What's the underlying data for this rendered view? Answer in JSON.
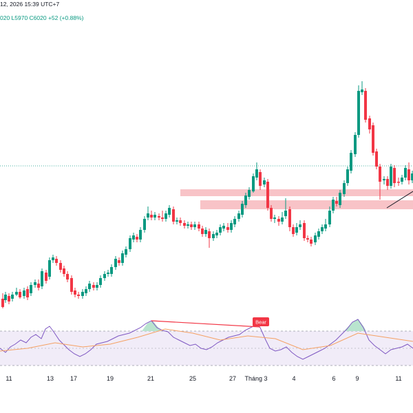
{
  "header": {
    "datetime": "12, 2026 15:39 UTC+7",
    "ohlc": "020  L5970  C6020  +52 (+0.88%)"
  },
  "colors": {
    "up": "#089981",
    "down": "#f23645",
    "zone": "#f7b8bd",
    "rsi_line": "#7e57c2",
    "rsi_ma": "#f5a062",
    "rsi_band": "#ede7f6",
    "divergence": "#f23645",
    "price_line": "#089981"
  },
  "indicators": {
    "divergence_label": "Bear"
  },
  "x_axis": {
    "labels": [
      "11",
      "13",
      "17",
      "19",
      "21",
      "25",
      "27",
      "Tháng 3",
      "4",
      "6",
      "9",
      "11"
    ]
  }
}
